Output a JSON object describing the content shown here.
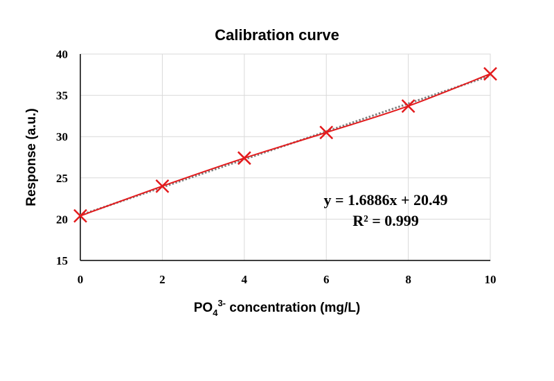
{
  "chart_data": {
    "type": "scatter",
    "title": "Calibration curve",
    "xlabel": {
      "base": "PO",
      "sub": "4",
      "sup": "3-",
      "rest": " concentration (mg/L)"
    },
    "ylabel": "Response (a.u.)",
    "xlim": [
      0,
      10
    ],
    "ylim": [
      15,
      40
    ],
    "xticks": [
      0,
      2,
      4,
      6,
      8,
      10
    ],
    "yticks": [
      15,
      20,
      25,
      30,
      35,
      40
    ],
    "grid": true,
    "series": [
      {
        "x": [
          0,
          2,
          4,
          6,
          8,
          10
        ],
        "y": [
          20.4,
          24.0,
          27.4,
          30.5,
          33.7,
          37.6
        ],
        "marker": "x",
        "color": "#e31a1c",
        "line": "smooth"
      }
    ],
    "trendline": {
      "type": "linear",
      "slope": 1.6886,
      "intercept": 20.49,
      "style": "dotted",
      "color": "#7f7f7f"
    },
    "annotations": {
      "equation": "y = 1.6886x + 20.49",
      "r2": "R² = 0.999"
    }
  }
}
